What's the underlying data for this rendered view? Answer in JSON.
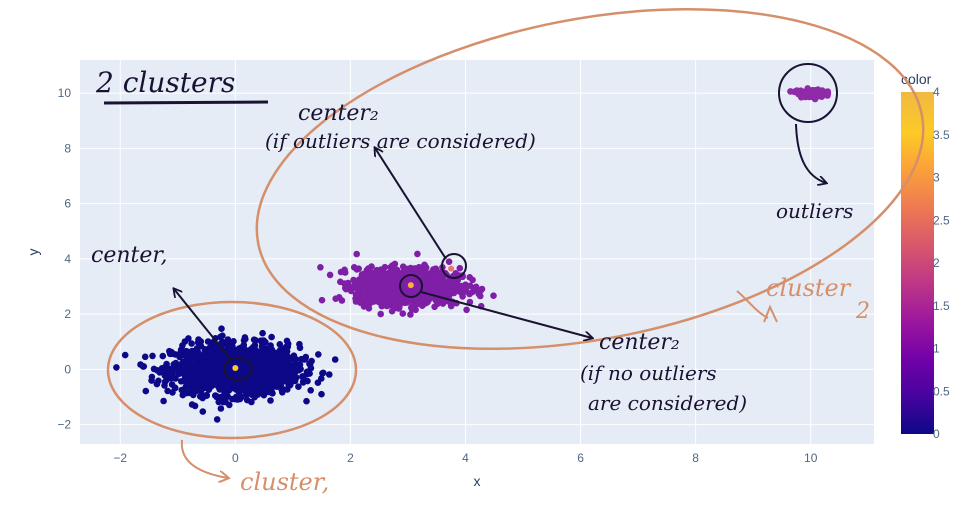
{
  "chart_data": {
    "type": "scatter",
    "xlabel": "x",
    "ylabel": "y",
    "xlim": [
      -2.7,
      11.1
    ],
    "ylim": [
      -2.7,
      11.2
    ],
    "x_ticks": [
      -2,
      0,
      2,
      4,
      6,
      8,
      10
    ],
    "y_ticks": [
      -2,
      0,
      2,
      4,
      6,
      8,
      10
    ],
    "grid": true,
    "colorbar": {
      "title": "color",
      "range": [
        0,
        4
      ],
      "ticks": [
        "0",
        "0.5",
        "1",
        "1.5",
        "2",
        "2.5",
        "3",
        "3.5",
        "4"
      ],
      "colors": [
        "#0d0887",
        "#46039f",
        "#7201a8",
        "#9c179e",
        "#bd3786",
        "#d8576b",
        "#ed7953",
        "#fb9f3a",
        "#fdca26",
        "#f0f921"
      ]
    },
    "series": [
      {
        "color_value": 0,
        "color": "#0d0887",
        "center": [
          0,
          0
        ],
        "spread": [
          0.55,
          0.45
        ],
        "count": 1400
      },
      {
        "color_value": 1.5,
        "color": "#7e1fa6",
        "center": [
          3,
          3
        ],
        "spread": [
          0.45,
          0.33
        ],
        "count": 1100
      },
      {
        "color_value": 1.5,
        "color": "#8f2aa8",
        "center": [
          10,
          10
        ],
        "spread": [
          0.12,
          0.07
        ],
        "count": 120
      }
    ],
    "centers": [
      {
        "x": 0.0,
        "y": 0.05,
        "color": "#fdca26"
      },
      {
        "x": 3.05,
        "y": 3.05,
        "color": "#f9b33b"
      },
      {
        "x": 3.75,
        "y": 3.65,
        "color": "#e47a6b"
      }
    ]
  },
  "annotations": {
    "title": "2 clusters",
    "center1": "center,",
    "center2_with_outliers_line1": "center₂",
    "center2_with_outliers_line2": "(if outliers are considered)",
    "center2_no_outliers_line1": "center₂",
    "center2_no_outliers_line2": "(if no outliers",
    "center2_no_outliers_line3": "are considered)",
    "outliers": "outliers",
    "cluster1": "cluster,",
    "cluster2": "cluster",
    "cluster2_sub": "2"
  },
  "colors": {
    "plot_bg": "#e5ecf6",
    "grid": "#ffffff",
    "ink": "#1a1233",
    "pen": "#d58f6a"
  }
}
